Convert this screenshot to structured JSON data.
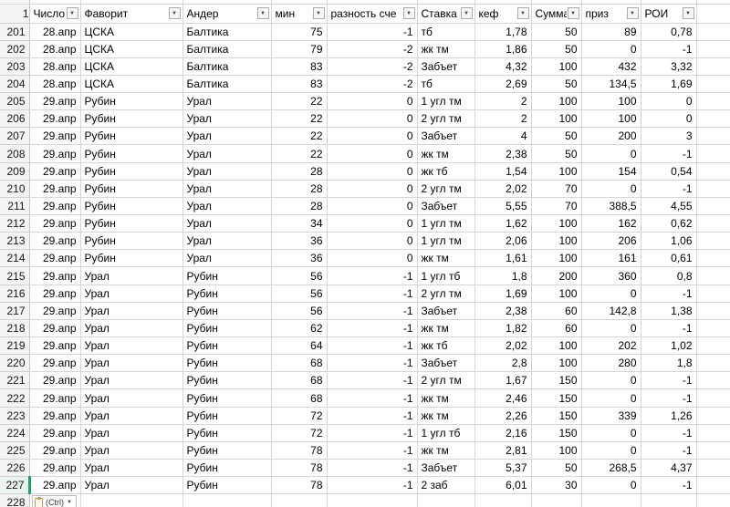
{
  "sheet": {
    "header_row_number": "1",
    "columns": [
      {
        "label": "Число"
      },
      {
        "label": "Фаворит"
      },
      {
        "label": "Андер"
      },
      {
        "label": "мин"
      },
      {
        "label": "разность сче"
      },
      {
        "label": "Ставка"
      },
      {
        "label": "кеф"
      },
      {
        "label": "Сумма"
      },
      {
        "label": "приз"
      },
      {
        "label": "РОИ"
      }
    ],
    "filter_caret": "▼",
    "active_row": "227",
    "next_row_number": "228",
    "rows": [
      {
        "n": "201",
        "cells": [
          "28.апр",
          "ЦСКА",
          "Балтика",
          "75",
          "-1",
          "тб",
          "1,78",
          "50",
          "89",
          "0,78"
        ]
      },
      {
        "n": "202",
        "cells": [
          "28.апр",
          "ЦСКА",
          "Балтика",
          "79",
          "-2",
          "жк тм",
          "1,86",
          "50",
          "0",
          "-1"
        ]
      },
      {
        "n": "203",
        "cells": [
          "28.апр",
          "ЦСКА",
          "Балтика",
          "83",
          "-2",
          "Забъет",
          "4,32",
          "100",
          "432",
          "3,32"
        ]
      },
      {
        "n": "204",
        "cells": [
          "28.апр",
          "ЦСКА",
          "Балтика",
          "83",
          "-2",
          "тб",
          "2,69",
          "50",
          "134,5",
          "1,69"
        ]
      },
      {
        "n": "205",
        "cells": [
          "29.апр",
          "Рубин",
          "Урал",
          "22",
          "0",
          "1 угл тм",
          "2",
          "100",
          "100",
          "0"
        ]
      },
      {
        "n": "206",
        "cells": [
          "29.апр",
          "Рубин",
          "Урал",
          "22",
          "0",
          "2 угл тм",
          "2",
          "100",
          "100",
          "0"
        ]
      },
      {
        "n": "207",
        "cells": [
          "29.апр",
          "Рубин",
          "Урал",
          "22",
          "0",
          "Забъет",
          "4",
          "50",
          "200",
          "3"
        ]
      },
      {
        "n": "208",
        "cells": [
          "29.апр",
          "Рубин",
          "Урал",
          "22",
          "0",
          "жк тм",
          "2,38",
          "50",
          "0",
          "-1"
        ]
      },
      {
        "n": "209",
        "cells": [
          "29.апр",
          "Рубин",
          "Урал",
          "28",
          "0",
          "жк тб",
          "1,54",
          "100",
          "154",
          "0,54"
        ]
      },
      {
        "n": "210",
        "cells": [
          "29.апр",
          "Рубин",
          "Урал",
          "28",
          "0",
          "2 угл тм",
          "2,02",
          "70",
          "0",
          "-1"
        ]
      },
      {
        "n": "211",
        "cells": [
          "29.апр",
          "Рубин",
          "Урал",
          "28",
          "0",
          "Забъет",
          "5,55",
          "70",
          "388,5",
          "4,55"
        ]
      },
      {
        "n": "212",
        "cells": [
          "29.апр",
          "Рубин",
          "Урал",
          "34",
          "0",
          "1 угл тм",
          "1,62",
          "100",
          "162",
          "0,62"
        ]
      },
      {
        "n": "213",
        "cells": [
          "29.апр",
          "Рубин",
          "Урал",
          "36",
          "0",
          "1 угл тм",
          "2,06",
          "100",
          "206",
          "1,06"
        ]
      },
      {
        "n": "214",
        "cells": [
          "29.апр",
          "Рубин",
          "Урал",
          "36",
          "0",
          "жк тм",
          "1,61",
          "100",
          "161",
          "0,61"
        ]
      },
      {
        "n": "215",
        "cells": [
          "29.апр",
          "Урал",
          "Рубин",
          "56",
          "-1",
          "1 угл тб",
          "1,8",
          "200",
          "360",
          "0,8"
        ]
      },
      {
        "n": "216",
        "cells": [
          "29.апр",
          "Урал",
          "Рубин",
          "56",
          "-1",
          "2 угл тм",
          "1,69",
          "100",
          "0",
          "-1"
        ]
      },
      {
        "n": "217",
        "cells": [
          "29.апр",
          "Урал",
          "Рубин",
          "56",
          "-1",
          "Забъет",
          "2,38",
          "60",
          "142,8",
          "1,38"
        ]
      },
      {
        "n": "218",
        "cells": [
          "29.апр",
          "Урал",
          "Рубин",
          "62",
          "-1",
          "жк тм",
          "1,82",
          "60",
          "0",
          "-1"
        ]
      },
      {
        "n": "219",
        "cells": [
          "29.апр",
          "Урал",
          "Рубин",
          "64",
          "-1",
          "жк тб",
          "2,02",
          "100",
          "202",
          "1,02"
        ]
      },
      {
        "n": "220",
        "cells": [
          "29.апр",
          "Урал",
          "Рубин",
          "68",
          "-1",
          "Забъет",
          "2,8",
          "100",
          "280",
          "1,8"
        ]
      },
      {
        "n": "221",
        "cells": [
          "29.апр",
          "Урал",
          "Рубин",
          "68",
          "-1",
          "2 угл тм",
          "1,67",
          "150",
          "0",
          "-1"
        ]
      },
      {
        "n": "222",
        "cells": [
          "29.апр",
          "Урал",
          "Рубин",
          "68",
          "-1",
          "жк тм",
          "2,46",
          "150",
          "0",
          "-1"
        ]
      },
      {
        "n": "223",
        "cells": [
          "29.апр",
          "Урал",
          "Рубин",
          "72",
          "-1",
          "жк тм",
          "2,26",
          "150",
          "339",
          "1,26"
        ]
      },
      {
        "n": "224",
        "cells": [
          "29.апр",
          "Урал",
          "Рубин",
          "72",
          "-1",
          "1 угл тб",
          "2,16",
          "150",
          "0",
          "-1"
        ]
      },
      {
        "n": "225",
        "cells": [
          "29.апр",
          "Урал",
          "Рубин",
          "78",
          "-1",
          "жк тм",
          "2,81",
          "100",
          "0",
          "-1"
        ]
      },
      {
        "n": "226",
        "cells": [
          "29.апр",
          "Урал",
          "Рубин",
          "78",
          "-1",
          "Забъет",
          "5,37",
          "50",
          "268,5",
          "4,37"
        ]
      },
      {
        "n": "227",
        "cells": [
          "29.апр",
          "Урал",
          "Рубин",
          "78",
          "-1",
          "2 заб",
          "6,01",
          "30",
          "0",
          "-1"
        ]
      }
    ]
  },
  "paste_options": {
    "label": "(Ctrl)",
    "caret": "▼"
  }
}
